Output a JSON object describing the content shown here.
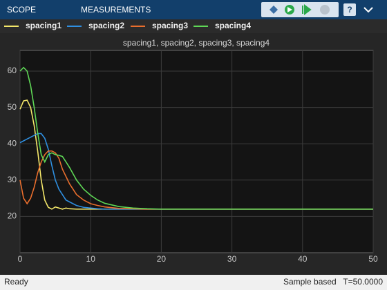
{
  "toolbar": {
    "tabs": [
      "SCOPE",
      "MEASUREMENTS"
    ]
  },
  "chart_data": {
    "type": "line",
    "title": "spacing1, spacing2, spacing3, spacing4",
    "x": [
      0,
      0.5,
      1,
      1.5,
      2,
      2.5,
      3,
      3.5,
      4,
      4.5,
      5,
      5.5,
      6,
      6.5,
      7,
      8,
      9,
      10,
      11,
      12,
      14,
      16,
      18,
      20,
      25,
      30,
      40,
      50
    ],
    "series": [
      {
        "name": "spacing1",
        "color": "#f4e76a",
        "values": [
          49.5,
          51.8,
          52,
          50,
          45,
          38,
          30,
          24.5,
          22.5,
          22,
          22.6,
          22.3,
          22,
          22.3,
          22.1,
          22,
          22,
          22,
          22,
          22,
          22,
          22,
          22,
          22,
          22,
          22,
          22,
          22
        ]
      },
      {
        "name": "spacing2",
        "color": "#2f8fe0",
        "values": [
          40.3,
          40.8,
          41.3,
          41.8,
          42.3,
          42.8,
          42.8,
          41.5,
          38.5,
          34,
          30,
          27.5,
          26,
          24.5,
          24,
          23,
          22.5,
          22.3,
          22.1,
          22,
          22,
          22,
          22,
          22,
          22,
          22,
          22,
          22
        ]
      },
      {
        "name": "spacing3",
        "color": "#ea6e2d",
        "values": [
          30,
          25,
          23.5,
          25,
          28,
          32,
          35,
          37,
          38,
          38,
          37.5,
          36,
          33,
          31,
          29,
          26,
          24.5,
          23.5,
          23,
          22.6,
          22.2,
          22.1,
          22,
          22,
          22,
          22,
          22,
          22
        ]
      },
      {
        "name": "spacing4",
        "color": "#5fd856",
        "values": [
          60,
          61,
          60,
          56,
          50,
          43,
          37,
          35,
          37,
          37.5,
          37,
          36.8,
          36.5,
          35,
          33.5,
          30,
          27.5,
          25.8,
          24.5,
          23.6,
          22.7,
          22.3,
          22.1,
          22,
          22,
          22,
          22,
          22
        ]
      }
    ],
    "xlim": [
      0,
      50
    ],
    "xticks": [
      0,
      10,
      20,
      30,
      40,
      50
    ],
    "ylim": [
      10,
      65.7
    ],
    "yticks": [
      20,
      30,
      40,
      50,
      60
    ],
    "grid": true
  },
  "status": {
    "left": "Ready",
    "mode": "Sample based",
    "time": "T=50.0000"
  }
}
